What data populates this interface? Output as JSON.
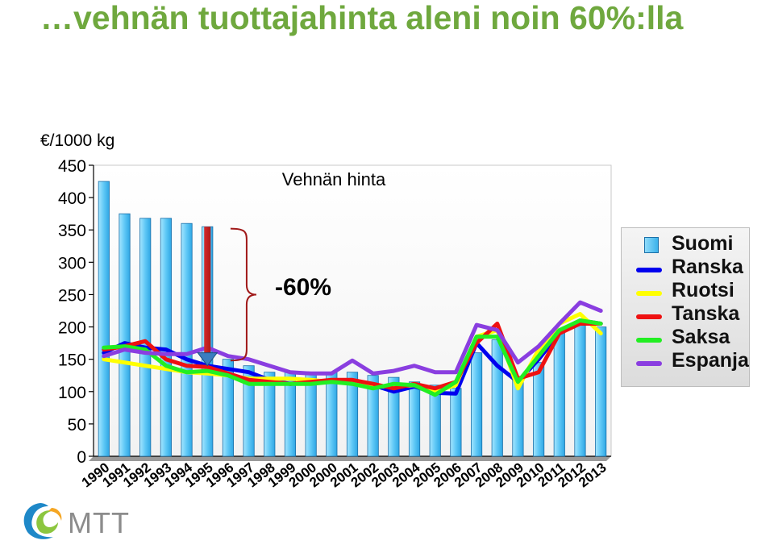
{
  "title": "…vehnän tuottajahinta aleni noin 60%:lla",
  "unit_label": "€/1000 kg",
  "logo_text": "MTT",
  "chart_data": {
    "type": "bar",
    "title": "Vehnän hinta",
    "annotation": "-60%",
    "categories": [
      "1990",
      "1991",
      "1992",
      "1993",
      "1994",
      "1995",
      "1996",
      "1997",
      "1998",
      "1999",
      "2000",
      "2000",
      "2001",
      "2002",
      "2003",
      "2004",
      "2005",
      "2006",
      "2007",
      "2008",
      "2009",
      "2010",
      "2011",
      "2012",
      "2013"
    ],
    "ylim": [
      0,
      450
    ],
    "yticks": [
      0,
      50,
      100,
      150,
      200,
      250,
      300,
      350,
      400,
      450
    ],
    "grid": false,
    "legend_position": "right",
    "series": [
      {
        "name": "Suomi",
        "kind": "bar",
        "color": "#3ab1ea",
        "values": [
          425,
          375,
          368,
          368,
          360,
          355,
          150,
          140,
          130,
          130,
          130,
          130,
          130,
          125,
          122,
          115,
          110,
          105,
          160,
          180,
          120,
          145,
          195,
          205,
          200
        ]
      },
      {
        "name": "Ranska",
        "kind": "line",
        "color": "#0000ee",
        "values": [
          160,
          175,
          168,
          165,
          150,
          140,
          135,
          130,
          118,
          112,
          115,
          115,
          115,
          110,
          100,
          108,
          98,
          97,
          175,
          140,
          115,
          150,
          190,
          210,
          205
        ]
      },
      {
        "name": "Ruotsi",
        "kind": "line",
        "color": "#ffff00",
        "values": [
          150,
          145,
          140,
          135,
          130,
          128,
          125,
          120,
          120,
          120,
          118,
          115,
          115,
          108,
          108,
          110,
          100,
          110,
          185,
          195,
          105,
          165,
          205,
          220,
          190
        ]
      },
      {
        "name": "Tanska",
        "kind": "line",
        "color": "#ee1111",
        "values": [
          165,
          170,
          178,
          150,
          140,
          138,
          128,
          118,
          115,
          112,
          115,
          118,
          118,
          112,
          105,
          112,
          105,
          115,
          175,
          205,
          120,
          130,
          190,
          205,
          205
        ]
      },
      {
        "name": "Saksa",
        "kind": "line",
        "color": "#22ee22",
        "values": [
          168,
          170,
          165,
          140,
          130,
          132,
          125,
          112,
          112,
          112,
          112,
          115,
          112,
          105,
          112,
          110,
          95,
          115,
          185,
          185,
          115,
          155,
          195,
          210,
          205
        ]
      },
      {
        "name": "Espanja",
        "kind": "line",
        "color": "#8a3ee0",
        "values": [
          155,
          165,
          160,
          158,
          158,
          168,
          155,
          150,
          140,
          130,
          128,
          128,
          148,
          128,
          132,
          140,
          130,
          130,
          203,
          195,
          145,
          170,
          205,
          238,
          225
        ]
      }
    ]
  }
}
